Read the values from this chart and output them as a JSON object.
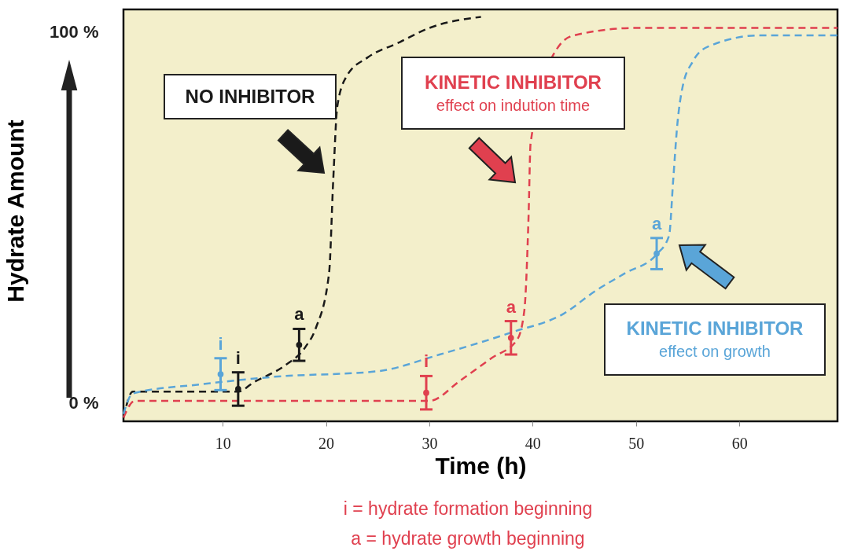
{
  "chart_data": {
    "type": "line",
    "xlabel": "Time (h)",
    "ylabel": "Hydrate Amount",
    "xlim": [
      0.4,
      69.5
    ],
    "xticks": [
      10,
      20,
      30,
      40,
      50,
      60
    ],
    "ylim": [
      -5,
      106
    ],
    "yticks": [
      {
        "value": 0,
        "label": "0 %"
      },
      {
        "value": 100,
        "label": "100 %"
      }
    ],
    "grid": false,
    "marker": "none",
    "line_style": "dashed",
    "series": [
      {
        "color": "#1a1a1a",
        "x": [
          0.4,
          1.3,
          11.5,
          13,
          16,
          18,
          19,
          20.3,
          20.7,
          21.1,
          22,
          24,
          27,
          30,
          35
        ],
        "values": [
          -4,
          3,
          3,
          5.5,
          10,
          15,
          20,
          35,
          60,
          80,
          88,
          93,
          97,
          101,
          104
        ]
      },
      {
        "color": "#e0404f",
        "x": [
          0.4,
          1.5,
          10,
          30,
          33,
          36,
          38.5,
          39.2,
          39.6,
          39.8,
          42.5,
          44,
          50,
          69.5
        ],
        "values": [
          -4,
          0.5,
          0.5,
          0.5,
          6,
          12,
          17,
          25,
          50,
          70,
          96,
          99,
          101,
          101
        ]
      },
      {
        "color": "#5aa5d8",
        "x": [
          0.4,
          1.3,
          8,
          15,
          25,
          31,
          38,
          43,
          46,
          49,
          52,
          53.2,
          53.6,
          54,
          54.5,
          55.5,
          57,
          62,
          69.5
        ],
        "values": [
          -3,
          2.5,
          5,
          7,
          8.5,
          13,
          19,
          24,
          30,
          35,
          40,
          45,
          60,
          75,
          85,
          92,
          96,
          99,
          99
        ]
      },
      {
        "type": "scatter",
        "marker": "circle",
        "color": "#1a1a1a",
        "x": [
          11.5,
          17.4
        ],
        "values": [
          3.7,
          15.6
        ],
        "errors": [
          4.5,
          4.3
        ],
        "value_labels": [
          "i",
          "a"
        ]
      },
      {
        "type": "scatter",
        "marker": "circle",
        "color": "#e0404f",
        "x": [
          29.7,
          37.9
        ],
        "values": [
          2.7,
          17.5
        ],
        "errors": [
          4.5,
          4.5
        ],
        "value_labels": [
          "i",
          "a"
        ]
      },
      {
        "type": "scatter",
        "marker": "circle",
        "color": "#5aa5d8",
        "x": [
          9.8,
          52.0
        ],
        "values": [
          7.7,
          40.2
        ],
        "errors": [
          4.3,
          4.2
        ],
        "value_labels": [
          "i",
          "a"
        ]
      }
    ],
    "annotations": [
      "NO INHIBITOR",
      "KINETIC INHIBITOR",
      "effect on indution time",
      "KINETIC INHIBITOR",
      "effect on growth",
      "i = hydrate formation beginning",
      "a = hydrate growth beginning"
    ]
  }
}
